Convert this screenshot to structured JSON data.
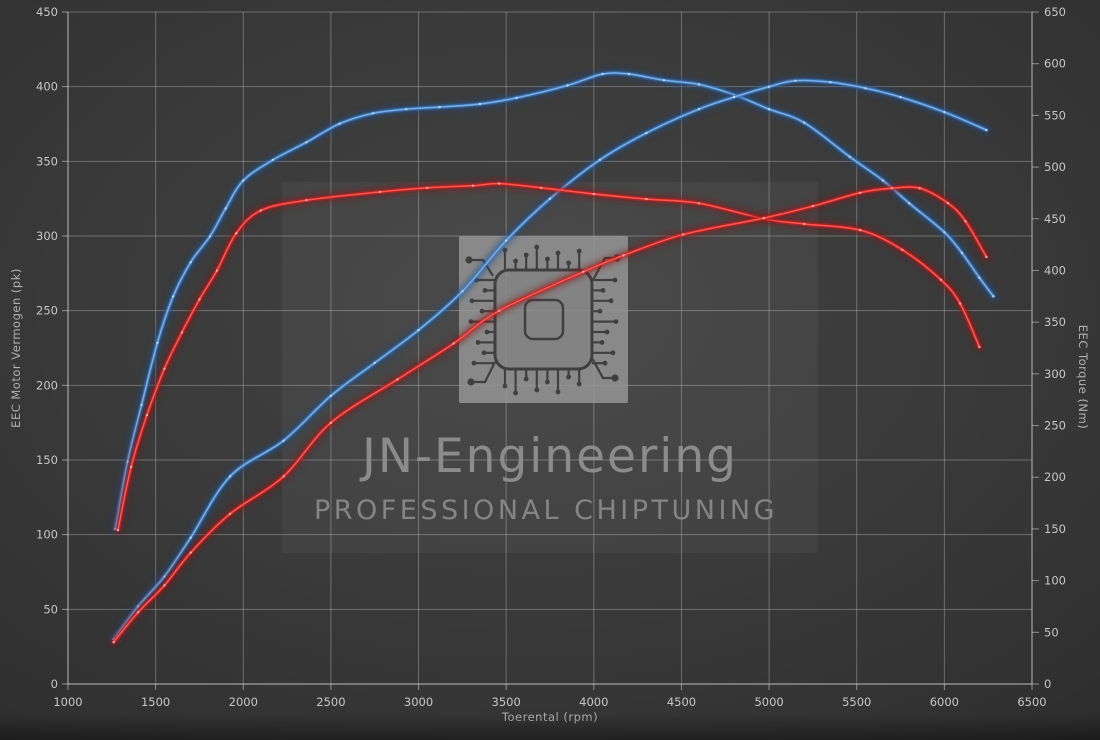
{
  "watermark": {
    "line1": "JN-Engineering",
    "line2": "PROFESSIONAL CHIPTUNING"
  },
  "chart_data": {
    "type": "line",
    "title": "",
    "xlabel": "Toerental (rpm)",
    "ylabel_left": "EEC Motor Vermogen (pk)",
    "ylabel_right": "EEC Torque (Nm)",
    "x_range": [
      1000,
      6500
    ],
    "x_tick_step": 500,
    "y_left_range": [
      0,
      450
    ],
    "y_left_tick_step": 50,
    "y_right_range": [
      0,
      650
    ],
    "y_right_tick_step": 50,
    "grid": true,
    "legend_position": "none",
    "colors": {
      "blue_core": "#7ab0e8",
      "blue_mid": "#3f7fc4",
      "blue_glow": "#1d4e87",
      "blue_dot": "#d2e5f8",
      "red_core": "#ff5a52",
      "red_mid": "#cc2020",
      "red_glow": "#8a1212",
      "red_dot": "#ffc4c0",
      "grid_line": "rgba(200,200,200,0.38)",
      "axis_line": "rgba(205,205,205,0.6)"
    },
    "series": [
      {
        "name": "blue-torque",
        "axis": "right",
        "unit": "Nm",
        "color": "blue",
        "points": [
          [
            1270,
            150
          ],
          [
            1340,
            215
          ],
          [
            1420,
            270
          ],
          [
            1510,
            330
          ],
          [
            1600,
            375
          ],
          [
            1700,
            408
          ],
          [
            1810,
            433
          ],
          [
            1900,
            460
          ],
          [
            2000,
            487
          ],
          [
            2170,
            507
          ],
          [
            2360,
            524
          ],
          [
            2550,
            542
          ],
          [
            2740,
            552
          ],
          [
            2930,
            556
          ],
          [
            3120,
            558
          ],
          [
            3350,
            561
          ],
          [
            3560,
            567
          ],
          [
            3850,
            579
          ],
          [
            4050,
            590
          ],
          [
            4200,
            590
          ],
          [
            4400,
            584
          ],
          [
            4600,
            580
          ],
          [
            4800,
            570
          ],
          [
            5000,
            556
          ],
          [
            5200,
            543
          ],
          [
            5460,
            510
          ],
          [
            5650,
            487
          ],
          [
            5800,
            465
          ],
          [
            6000,
            437
          ],
          [
            6100,
            417
          ],
          [
            6200,
            393
          ],
          [
            6280,
            375
          ]
        ]
      },
      {
        "name": "blue-power",
        "axis": "left",
        "unit": "pk",
        "color": "blue",
        "points": [
          [
            1260,
            30
          ],
          [
            1400,
            52
          ],
          [
            1550,
            72
          ],
          [
            1700,
            98
          ],
          [
            1925,
            139
          ],
          [
            2230,
            163
          ],
          [
            2500,
            193
          ],
          [
            2750,
            215
          ],
          [
            3000,
            237
          ],
          [
            3250,
            263
          ],
          [
            3500,
            297
          ],
          [
            3750,
            325
          ],
          [
            4035,
            351
          ],
          [
            4300,
            369
          ],
          [
            4600,
            385
          ],
          [
            4800,
            393
          ],
          [
            5000,
            400
          ],
          [
            5150,
            404
          ],
          [
            5350,
            403
          ],
          [
            5550,
            399
          ],
          [
            5750,
            393
          ],
          [
            6000,
            383
          ],
          [
            6240,
            371
          ]
        ]
      },
      {
        "name": "red-torque",
        "axis": "right",
        "unit": "Nm",
        "color": "red",
        "points": [
          [
            1285,
            149
          ],
          [
            1360,
            210
          ],
          [
            1450,
            260
          ],
          [
            1550,
            305
          ],
          [
            1650,
            340
          ],
          [
            1750,
            372
          ],
          [
            1850,
            400
          ],
          [
            1960,
            436
          ],
          [
            2100,
            458
          ],
          [
            2360,
            468
          ],
          [
            2780,
            476
          ],
          [
            3050,
            480
          ],
          [
            3310,
            482
          ],
          [
            3460,
            484
          ],
          [
            3700,
            480
          ],
          [
            4000,
            474
          ],
          [
            4300,
            469
          ],
          [
            4600,
            465
          ],
          [
            4970,
            450
          ],
          [
            5200,
            445
          ],
          [
            5520,
            439
          ],
          [
            5760,
            420
          ],
          [
            5980,
            391
          ],
          [
            6090,
            368
          ],
          [
            6200,
            326
          ]
        ]
      },
      {
        "name": "red-power",
        "axis": "left",
        "unit": "pk",
        "color": "red",
        "points": [
          [
            1260,
            28
          ],
          [
            1400,
            48
          ],
          [
            1550,
            66
          ],
          [
            1700,
            88
          ],
          [
            1925,
            114
          ],
          [
            2230,
            139
          ],
          [
            2500,
            175
          ],
          [
            2880,
            204
          ],
          [
            3200,
            228
          ],
          [
            3460,
            250
          ],
          [
            3940,
            276
          ],
          [
            4170,
            287
          ],
          [
            4510,
            301
          ],
          [
            4970,
            312
          ],
          [
            5250,
            320
          ],
          [
            5520,
            329
          ],
          [
            5700,
            332
          ],
          [
            5860,
            332
          ],
          [
            6020,
            322
          ],
          [
            6120,
            310
          ],
          [
            6240,
            286
          ]
        ]
      }
    ]
  }
}
